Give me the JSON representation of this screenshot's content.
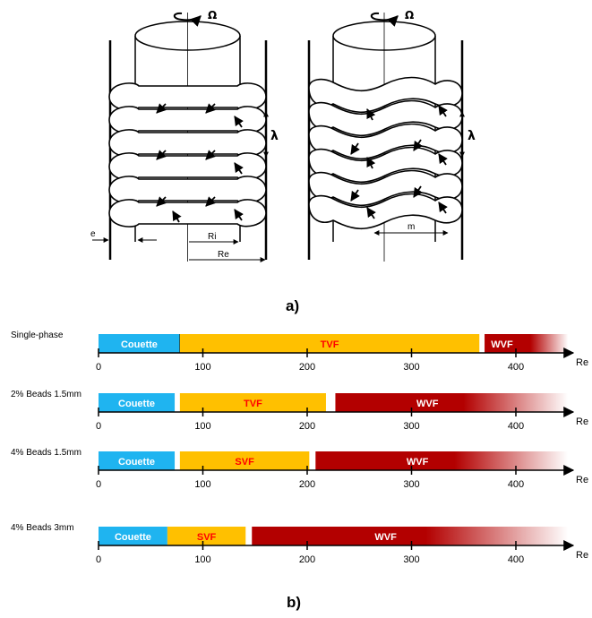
{
  "figure_a": {
    "caption": "a)",
    "omega": "Ω",
    "lambda": "λ",
    "e": "e",
    "ri": "Ri",
    "re": "Re",
    "m": "m"
  },
  "figure_b": {
    "caption": "b)",
    "axis_label": "Re",
    "ticks": [
      "0",
      "100",
      "200",
      "300",
      "400"
    ],
    "colors": {
      "couette": "#1fb4f0",
      "taylor": "#ffc000",
      "wavy": "#b30000",
      "label_red": "#ff0000",
      "label_white": "#ffffff"
    }
  },
  "chart_data": {
    "type": "bar",
    "xlabel": "Re",
    "xlim": [
      0,
      450
    ],
    "categories": [
      "Single-phase",
      "2% Beads 1.5mm",
      "4% Beads 1.5mm",
      "4% Beads 3mm"
    ],
    "series": [
      {
        "name": "Couette",
        "values": [
          [
            0,
            78
          ],
          [
            0,
            73
          ],
          [
            0,
            73
          ],
          [
            0,
            66
          ]
        ]
      },
      {
        "name": "TVF",
        "values": [
          [
            78,
            365
          ],
          [
            78,
            218
          ],
          null,
          null
        ]
      },
      {
        "name": "SVF",
        "values": [
          null,
          null,
          [
            78,
            202
          ],
          [
            66,
            141
          ]
        ]
      },
      {
        "name": "WVF",
        "values": [
          [
            370,
            450
          ],
          [
            227,
            450
          ],
          [
            208,
            450
          ],
          [
            147,
            450
          ]
        ]
      }
    ]
  }
}
